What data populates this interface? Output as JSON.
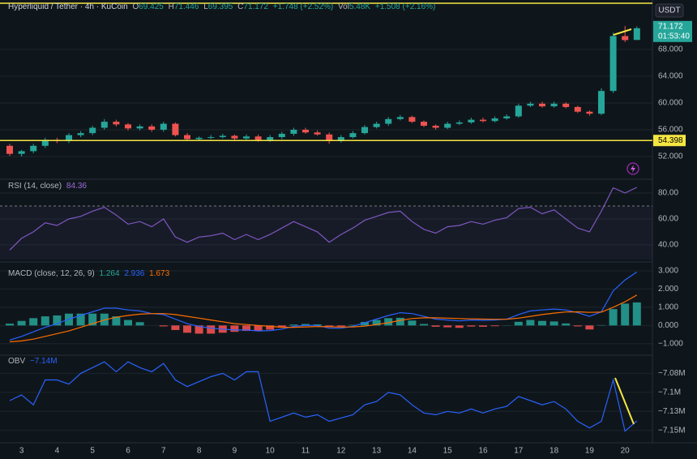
{
  "chart_data": [
    {
      "type": "candlestick",
      "title": "Hyperliquid / Tether · 4h · KuCoin",
      "categories": [
        null,
        "3",
        null,
        null,
        "4",
        null,
        null,
        "5",
        null,
        null,
        "6",
        null,
        null,
        "7",
        null,
        null,
        "8",
        null,
        null,
        "9",
        null,
        null,
        "10",
        null,
        null,
        "11",
        null,
        null,
        "12",
        null,
        null,
        "13",
        null,
        null,
        "14",
        null,
        null,
        "15",
        null,
        null,
        "16",
        null,
        null,
        "17",
        null,
        null,
        "18",
        null,
        null,
        "19",
        null,
        null,
        "20",
        null
      ],
      "open": [
        53.6,
        52.4,
        52.8,
        53.6,
        54.5,
        54.3,
        55.2,
        55.5,
        56.3,
        57.2,
        56.8,
        56.2,
        56.5,
        56.0,
        56.9,
        55.2,
        54.6,
        54.8,
        54.9,
        55.1,
        54.7,
        55.0,
        54.5,
        54.9,
        55.4,
        56.0,
        55.6,
        55.3,
        54.3,
        54.9,
        55.5,
        56.4,
        56.9,
        57.6,
        57.9,
        57.2,
        56.6,
        56.3,
        56.9,
        57.1,
        57.5,
        57.3,
        57.7,
        58.0,
        59.6,
        59.9,
        59.5,
        59.9,
        59.4,
        58.7,
        58.4,
        61.8,
        70.0,
        69.425
      ],
      "high": [
        53.9,
        53.0,
        53.9,
        54.8,
        54.8,
        55.5,
        55.8,
        56.6,
        57.6,
        57.5,
        57.0,
        56.8,
        56.8,
        57.2,
        57.1,
        55.5,
        55.0,
        55.2,
        55.4,
        55.3,
        55.3,
        55.3,
        55.2,
        55.7,
        56.3,
        56.3,
        55.9,
        55.6,
        55.2,
        55.8,
        56.7,
        57.2,
        57.9,
        58.2,
        58.1,
        57.4,
        56.8,
        57.2,
        57.4,
        57.8,
        57.8,
        58.0,
        58.3,
        59.9,
        60.2,
        60.2,
        60.2,
        60.1,
        59.6,
        58.9,
        62.2,
        70.5,
        71.5,
        71.446
      ],
      "low": [
        52.1,
        52.0,
        52.5,
        53.3,
        54.0,
        54.0,
        54.9,
        55.2,
        56.0,
        56.5,
        55.9,
        55.9,
        55.7,
        55.7,
        55.0,
        54.3,
        54.4,
        54.6,
        54.7,
        54.4,
        54.5,
        54.2,
        54.2,
        54.6,
        55.1,
        55.4,
        55.1,
        53.9,
        54.1,
        54.7,
        55.3,
        56.2,
        56.6,
        57.4,
        57.0,
        56.4,
        56.0,
        56.1,
        56.7,
        56.9,
        57.1,
        57.1,
        57.5,
        57.8,
        59.4,
        59.3,
        59.3,
        59.2,
        58.5,
        58.1,
        58.2,
        61.5,
        69.1,
        69.395
      ],
      "close": [
        52.4,
        52.8,
        53.6,
        54.5,
        54.3,
        55.2,
        55.5,
        56.3,
        57.2,
        56.8,
        56.2,
        56.5,
        56.0,
        56.9,
        55.2,
        54.6,
        54.8,
        54.9,
        55.1,
        54.7,
        55.0,
        54.5,
        54.9,
        55.4,
        56.0,
        55.6,
        55.3,
        54.3,
        54.9,
        55.5,
        56.4,
        56.9,
        57.6,
        57.9,
        57.2,
        56.6,
        56.3,
        56.9,
        57.1,
        57.5,
        57.3,
        57.7,
        58.0,
        59.6,
        59.9,
        59.5,
        59.9,
        59.4,
        58.7,
        58.4,
        61.8,
        70.0,
        69.4,
        71.172
      ],
      "up_color": "#26a69a",
      "down_color": "#ef5350",
      "ylim": [
        48.73,
        75.39
      ],
      "yticks": [
        {
          "value": 52,
          "label": "52.000"
        },
        {
          "value": 56,
          "label": "56.000"
        },
        {
          "value": 60,
          "label": "60.000"
        },
        {
          "value": 64,
          "label": "64.000"
        },
        {
          "value": 68,
          "label": "68.000"
        }
      ],
      "grid": true,
      "legend_keys": [
        "O",
        "H",
        "L",
        "C"
      ],
      "change": "+1.748 (+2.52%)",
      "volume": {
        "label": "Vol",
        "value": "5.48K",
        "change": "+1.508 (+2.16%)"
      },
      "countdown": "01:53:40",
      "hline": 54.398,
      "hline_color": "#f5e642",
      "currency": "USDT"
    },
    {
      "type": "line",
      "title": "RSI (14, close)",
      "series": [
        {
          "color": "#7e57c2",
          "values": [
            36,
            45,
            50,
            57,
            55,
            60,
            62,
            66,
            69,
            63,
            56,
            58,
            54,
            60,
            46,
            42,
            46,
            47,
            49,
            44,
            48,
            44,
            48,
            53,
            58,
            54,
            50,
            42,
            48,
            53,
            59,
            62,
            65,
            66,
            58,
            52,
            49,
            54,
            55,
            58,
            56,
            59,
            61,
            68,
            69,
            64,
            67,
            60,
            53,
            50,
            66,
            84,
            80,
            84.36
          ]
        }
      ],
      "ylim": [
        28.7,
        90
      ],
      "yticks": [
        {
          "value": 40,
          "label": "40.00"
        },
        {
          "value": 60,
          "label": "60.00"
        },
        {
          "value": 80,
          "label": "80.00"
        }
      ],
      "overbought": 70,
      "grid": true
    },
    {
      "type": "macd",
      "title": "MACD (close, 12, 26, 9)",
      "histogram": {
        "positive_color": "#26a69a",
        "negative_color": "#ff5252",
        "values": [
          0.1,
          0.25,
          0.4,
          0.5,
          0.55,
          0.65,
          0.65,
          0.65,
          0.65,
          0.5,
          0.3,
          0.18,
          0,
          -0.05,
          -0.25,
          -0.4,
          -0.45,
          -0.45,
          -0.4,
          -0.35,
          -0.3,
          -0.3,
          -0.23,
          -0.1,
          0.05,
          0.08,
          0.06,
          -0.08,
          -0.06,
          0.03,
          0.19,
          0.3,
          0.4,
          0.42,
          0.27,
          0.08,
          -0.07,
          -0.1,
          -0.13,
          -0.06,
          -0.07,
          -0.04,
          0.01,
          0.2,
          0.3,
          0.25,
          0.22,
          0.11,
          -0.05,
          -0.22,
          0.02,
          0.9,
          1.2,
          1.264
        ]
      },
      "series": [
        {
          "color": "#2962ff",
          "values": [
            -0.8,
            -0.6,
            -0.35,
            -0.1,
            0.1,
            0.35,
            0.55,
            0.75,
            0.95,
            0.95,
            0.85,
            0.8,
            0.65,
            0.6,
            0.35,
            0.1,
            -0.05,
            -0.15,
            -0.2,
            -0.25,
            -0.25,
            -0.3,
            -0.28,
            -0.2,
            -0.05,
            0,
            0,
            -0.15,
            -0.15,
            -0.05,
            0.15,
            0.35,
            0.55,
            0.7,
            0.65,
            0.5,
            0.35,
            0.3,
            0.25,
            0.3,
            0.28,
            0.3,
            0.35,
            0.6,
            0.8,
            0.85,
            0.9,
            0.85,
            0.7,
            0.5,
            0.75,
            1.9,
            2.5,
            2.936
          ]
        },
        {
          "color": "#ff6d00",
          "values": [
            -0.9,
            -0.85,
            -0.75,
            -0.6,
            -0.45,
            -0.3,
            -0.1,
            0.1,
            0.3,
            0.45,
            0.55,
            0.62,
            0.65,
            0.65,
            0.6,
            0.5,
            0.4,
            0.3,
            0.2,
            0.1,
            0.05,
            0,
            -0.05,
            -0.1,
            -0.1,
            -0.08,
            -0.06,
            -0.07,
            -0.09,
            -0.08,
            -0.04,
            0.05,
            0.15,
            0.28,
            0.38,
            0.42,
            0.42,
            0.4,
            0.38,
            0.36,
            0.35,
            0.34,
            0.34,
            0.4,
            0.5,
            0.6,
            0.68,
            0.74,
            0.75,
            0.72,
            0.73,
            1.0,
            1.3,
            1.673
          ]
        }
      ],
      "ylim": [
        -1.5,
        3.4
      ],
      "yticks": [
        {
          "value": 3,
          "label": "3.000"
        },
        {
          "value": 2,
          "label": "2.000"
        },
        {
          "value": 1,
          "label": "1.000"
        },
        {
          "value": 0,
          "label": "0.000"
        },
        {
          "value": -1,
          "label": "−1.000"
        }
      ],
      "grid": true
    },
    {
      "type": "line",
      "title": "OBV",
      "series": [
        {
          "color": "#2962ff",
          "values": [
            -7114400,
            -7107100,
            -7119700,
            -7088300,
            -7088300,
            -7093600,
            -7080000,
            -7072700,
            -7065400,
            -7077900,
            -7065400,
            -7072700,
            -7077900,
            -7067500,
            -7088300,
            -7096700,
            -7090400,
            -7084200,
            -7080000,
            -7088300,
            -7077900,
            -7077900,
            -7140500,
            -7135300,
            -7130100,
            -7135300,
            -7132200,
            -7140500,
            -7136300,
            -7132200,
            -7119700,
            -7115500,
            -7104000,
            -7107100,
            -7119700,
            -7130100,
            -7132200,
            -7128000,
            -7130100,
            -7124900,
            -7130100,
            -7124900,
            -7121700,
            -7109200,
            -7114400,
            -7119700,
            -7115500,
            -7124900,
            -7140500,
            -7148900,
            -7140500,
            -7088300,
            -7153000,
            -7140000
          ],
          "value_labels": [
            null,
            null,
            null,
            null,
            null,
            null,
            null,
            null,
            null,
            null,
            null,
            null,
            null,
            null,
            null,
            null,
            null,
            null,
            null,
            null,
            null,
            null,
            null,
            null,
            null,
            null,
            null,
            null,
            null,
            null,
            null,
            null,
            null,
            null,
            null,
            null,
            null,
            null,
            null,
            null,
            null,
            null,
            null,
            null,
            null,
            null,
            null,
            null,
            null,
            null,
            null,
            null,
            null,
            "−7.14M"
          ]
        }
      ],
      "ylim": [
        -7166600,
        -7059100
      ],
      "yticks": [
        {
          "value": -7080000,
          "label": "−7.08M"
        },
        {
          "value": -7104000,
          "label": "−7.1M"
        },
        {
          "value": -7128000,
          "label": "−7.13M"
        },
        {
          "value": -7152000,
          "label": "−7.15M"
        }
      ],
      "grid": true
    }
  ]
}
